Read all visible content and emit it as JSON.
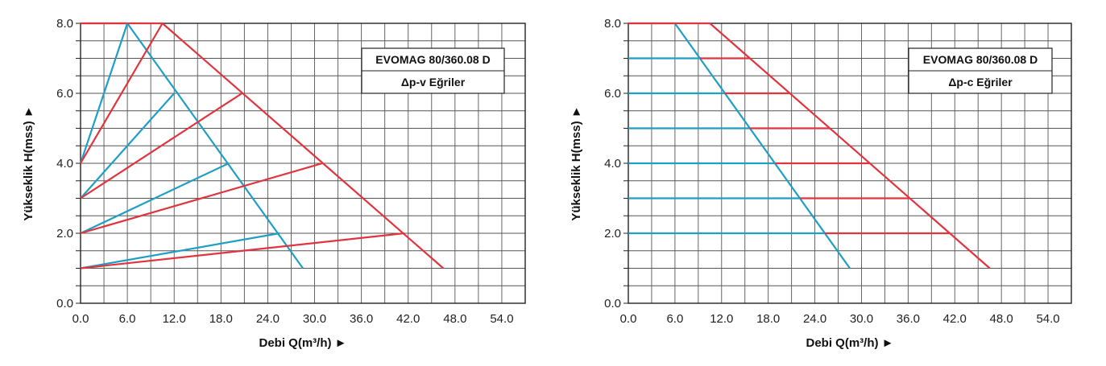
{
  "colors": {
    "blue": "#1f9fc4",
    "red": "#e0343f",
    "grid": "#555555",
    "major_grid": "#222222"
  },
  "chart_data": [
    {
      "type": "line",
      "title": "EVOMAG 80/360.08 D",
      "subtitle": "Δp-v Eğriler",
      "xlabel": "Debi Q(m³/h) ►",
      "ylabel": "Yükseklik H(mss) ►",
      "xlim": [
        0,
        57
      ],
      "ylim": [
        0,
        8
      ],
      "xticks": [
        "0.0",
        "6.0",
        "12.0",
        "18.0",
        "24.0",
        "30.0",
        "36.0",
        "42.0",
        "48.0",
        "54.0"
      ],
      "yticks": [
        "0.0",
        "2.0",
        "4.0",
        "6.0",
        "8.0"
      ],
      "grid": true,
      "series": [
        {
          "color": "blue",
          "points": [
            [
              0,
              8
            ],
            [
              6,
              8
            ],
            [
              28.5,
              1
            ]
          ]
        },
        {
          "color": "red",
          "points": [
            [
              0,
              8
            ],
            [
              10.5,
              8
            ],
            [
              46.5,
              1
            ]
          ]
        },
        {
          "color": "blue",
          "points": [
            [
              0,
              4
            ],
            [
              6,
              8
            ]
          ]
        },
        {
          "color": "red",
          "points": [
            [
              0,
              4
            ],
            [
              10.5,
              8
            ]
          ]
        },
        {
          "color": "blue",
          "points": [
            [
              0,
              3
            ],
            [
              12,
              6
            ]
          ]
        },
        {
          "color": "red",
          "points": [
            [
              0,
              3
            ],
            [
              20.7,
              6
            ]
          ]
        },
        {
          "color": "blue",
          "points": [
            [
              0,
              2
            ],
            [
              19,
              4
            ]
          ]
        },
        {
          "color": "red",
          "points": [
            [
              0,
              2
            ],
            [
              31,
              4
            ]
          ]
        },
        {
          "color": "blue",
          "points": [
            [
              0,
              1
            ],
            [
              25.5,
              2
            ]
          ]
        },
        {
          "color": "red",
          "points": [
            [
              0,
              1
            ],
            [
              41.5,
              2
            ]
          ]
        }
      ]
    },
    {
      "type": "line",
      "title": "EVOMAG 80/360.08 D",
      "subtitle": "Δp-c Eğriler",
      "xlabel": "Debi Q(m³/h) ►",
      "ylabel": "Yükseklik H(mss) ►",
      "xlim": [
        0,
        57
      ],
      "ylim": [
        0,
        8
      ],
      "xticks": [
        "0.0",
        "6.0",
        "12.0",
        "18.0",
        "24.0",
        "30.0",
        "36.0",
        "42.0",
        "48.0",
        "54.0"
      ],
      "yticks": [
        "0.0",
        "2.0",
        "4.0",
        "6.0",
        "8.0"
      ],
      "grid": true,
      "series": [
        {
          "color": "blue",
          "points": [
            [
              0,
              8
            ],
            [
              6,
              8
            ],
            [
              28.5,
              1
            ]
          ]
        },
        {
          "color": "red",
          "points": [
            [
              0,
              8
            ],
            [
              10.5,
              8
            ],
            [
              46.5,
              1
            ]
          ]
        },
        {
          "color": "blue",
          "points": [
            [
              0,
              7
            ],
            [
              9.2,
              7
            ]
          ]
        },
        {
          "color": "red",
          "points": [
            [
              9.2,
              7
            ],
            [
              15.7,
              7
            ]
          ]
        },
        {
          "color": "blue",
          "points": [
            [
              0,
              6
            ],
            [
              12.4,
              6
            ]
          ]
        },
        {
          "color": "red",
          "points": [
            [
              12.4,
              6
            ],
            [
              20.8,
              6
            ]
          ]
        },
        {
          "color": "blue",
          "points": [
            [
              0,
              5
            ],
            [
              15.6,
              5
            ]
          ]
        },
        {
          "color": "red",
          "points": [
            [
              15.6,
              5
            ],
            [
              25.9,
              5
            ]
          ]
        },
        {
          "color": "blue",
          "points": [
            [
              0,
              4
            ],
            [
              18.9,
              4
            ]
          ]
        },
        {
          "color": "red",
          "points": [
            [
              18.9,
              4
            ],
            [
              31,
              4
            ]
          ]
        },
        {
          "color": "blue",
          "points": [
            [
              0,
              3
            ],
            [
              22.1,
              3
            ]
          ]
        },
        {
          "color": "red",
          "points": [
            [
              22.1,
              3
            ],
            [
              36.2,
              3
            ]
          ]
        },
        {
          "color": "blue",
          "points": [
            [
              0,
              2
            ],
            [
              25.3,
              2
            ]
          ]
        },
        {
          "color": "red",
          "points": [
            [
              25.3,
              2
            ],
            [
              41.3,
              2
            ]
          ]
        }
      ]
    }
  ]
}
